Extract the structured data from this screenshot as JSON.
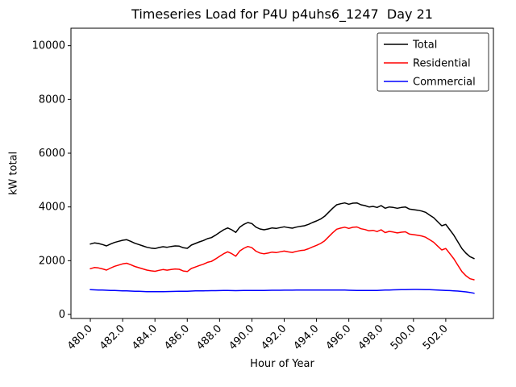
{
  "figure": {
    "title": "Timeseries Load for P4U p4uhs6_1247  Day 21",
    "xlabel": "Hour of Year",
    "ylabel": "kW total"
  },
  "chart_data": {
    "type": "line",
    "title": "Timeseries Load for P4U p4uhs6_1247  Day 21",
    "xlabel": "Hour of Year",
    "ylabel": "kW total",
    "grid": false,
    "legend_position": "upper right",
    "xlim": [
      478.8,
      504.95
    ],
    "ylim": [
      -150,
      10650
    ],
    "xticks": [
      480,
      482,
      484,
      486,
      488,
      490,
      492,
      494,
      496,
      498,
      500,
      502
    ],
    "xtick_labels": [
      "480.0",
      "482.0",
      "484.0",
      "486.0",
      "488.0",
      "490.0",
      "492.0",
      "494.0",
      "496.0",
      "498.0",
      "500.0",
      "502.0"
    ],
    "yticks": [
      0,
      2000,
      4000,
      6000,
      8000,
      10000
    ],
    "ytick_labels": [
      "0",
      "2000",
      "4000",
      "6000",
      "8000",
      "10000"
    ],
    "x": [
      480.0,
      480.25,
      480.5,
      480.75,
      481.0,
      481.25,
      481.5,
      481.75,
      482.0,
      482.25,
      482.5,
      482.75,
      483.0,
      483.25,
      483.5,
      483.75,
      484.0,
      484.25,
      484.5,
      484.75,
      485.0,
      485.25,
      485.5,
      485.75,
      486.0,
      486.25,
      486.5,
      486.75,
      487.0,
      487.25,
      487.5,
      487.75,
      488.0,
      488.25,
      488.5,
      488.75,
      489.0,
      489.25,
      489.5,
      489.75,
      490.0,
      490.25,
      490.5,
      490.75,
      491.0,
      491.25,
      491.5,
      491.75,
      492.0,
      492.25,
      492.5,
      492.75,
      493.0,
      493.25,
      493.5,
      493.75,
      494.0,
      494.25,
      494.5,
      494.75,
      495.0,
      495.25,
      495.5,
      495.75,
      496.0,
      496.25,
      496.5,
      496.75,
      497.0,
      497.25,
      497.5,
      497.75,
      498.0,
      498.25,
      498.5,
      498.75,
      499.0,
      499.25,
      499.5,
      499.75,
      500.0,
      500.25,
      500.5,
      500.75,
      501.0,
      501.25,
      501.5,
      501.75,
      502.0,
      502.25,
      502.5,
      502.75,
      503.0,
      503.25,
      503.5,
      503.75
    ],
    "series": [
      {
        "name": "Total",
        "color": "#000000",
        "values": [
          2620,
          2660,
          2640,
          2600,
          2550,
          2620,
          2680,
          2720,
          2760,
          2780,
          2720,
          2650,
          2600,
          2550,
          2500,
          2470,
          2450,
          2490,
          2520,
          2500,
          2530,
          2550,
          2540,
          2480,
          2460,
          2580,
          2640,
          2700,
          2750,
          2820,
          2860,
          2950,
          3050,
          3150,
          3220,
          3150,
          3050,
          3250,
          3350,
          3420,
          3380,
          3250,
          3180,
          3150,
          3180,
          3220,
          3200,
          3230,
          3260,
          3230,
          3210,
          3250,
          3280,
          3300,
          3350,
          3420,
          3480,
          3550,
          3650,
          3800,
          3950,
          4080,
          4120,
          4150,
          4100,
          4140,
          4150,
          4080,
          4050,
          4000,
          4020,
          3980,
          4050,
          3950,
          4000,
          3980,
          3950,
          3980,
          4000,
          3920,
          3900,
          3880,
          3850,
          3800,
          3700,
          3600,
          3450,
          3300,
          3350,
          3150,
          2950,
          2700,
          2450,
          2280,
          2150,
          2080
        ]
      },
      {
        "name": "Residential",
        "color": "#ff0000",
        "values": [
          1700,
          1745,
          1730,
          1695,
          1650,
          1725,
          1790,
          1835,
          1880,
          1905,
          1850,
          1785,
          1740,
          1695,
          1650,
          1622,
          1605,
          1642,
          1670,
          1648,
          1675,
          1692,
          1680,
          1618,
          1595,
          1710,
          1765,
          1822,
          1870,
          1938,
          1975,
          2065,
          2162,
          2260,
          2330,
          2262,
          2165,
          2362,
          2460,
          2528,
          2485,
          2355,
          2285,
          2255,
          2282,
          2320,
          2300,
          2330,
          2358,
          2327,
          2307,
          2345,
          2375,
          2395,
          2445,
          2512,
          2572,
          2640,
          2740,
          2890,
          3040,
          3170,
          3212,
          3245,
          3200,
          3242,
          3255,
          3188,
          3160,
          3110,
          3128,
          3085,
          3150,
          3045,
          3090,
          3065,
          3032,
          3060,
          3075,
          2992,
          2970,
          2950,
          2922,
          2875,
          2780,
          2685,
          2542,
          2400,
          2455,
          2262,
          2070,
          1830,
          1595,
          1440,
          1330,
          1290
        ]
      },
      {
        "name": "Commercial",
        "color": "#0000ff",
        "values": [
          920,
          915,
          910,
          905,
          900,
          895,
          890,
          885,
          880,
          875,
          870,
          865,
          860,
          855,
          850,
          848,
          845,
          848,
          850,
          852,
          855,
          858,
          860,
          862,
          865,
          870,
          875,
          878,
          880,
          882,
          885,
          885,
          888,
          890,
          890,
          888,
          885,
          888,
          890,
          892,
          895,
          895,
          895,
          895,
          898,
          900,
          900,
          900,
          902,
          903,
          903,
          905,
          905,
          905,
          905,
          908,
          908,
          910,
          910,
          910,
          910,
          910,
          908,
          905,
          900,
          898,
          895,
          892,
          890,
          890,
          892,
          895,
          900,
          905,
          910,
          915,
          918,
          920,
          925,
          928,
          930,
          930,
          928,
          925,
          920,
          915,
          908,
          900,
          895,
          888,
          880,
          870,
          855,
          840,
          820,
          790
        ]
      }
    ]
  }
}
